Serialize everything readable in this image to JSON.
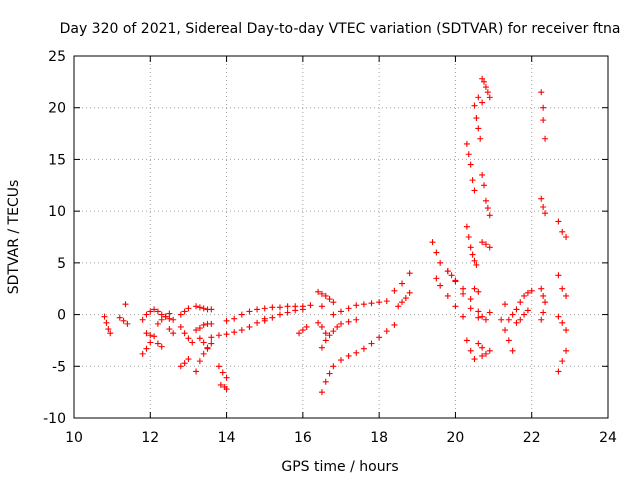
{
  "chart_data": {
    "type": "scatter",
    "title": "Day 320 of 2021, Sidereal Day-to-day VTEC variation (SDTVAR) for receiver ftna",
    "xlabel": "GPS time / hours",
    "ylabel": "SDTVAR / TECUs",
    "xlim": [
      10,
      24
    ],
    "ylim": [
      -10,
      25
    ],
    "xticks": [
      "10",
      "12",
      "14",
      "16",
      "18",
      "20",
      "22",
      "24"
    ],
    "yticks": [
      "-10",
      "-5",
      "0",
      "5",
      "10",
      "15",
      "20",
      "25"
    ],
    "grid": true,
    "marker": "+",
    "color": "#ff0000",
    "series": [
      {
        "name": "s1",
        "x": [
          10.8,
          10.85,
          10.9,
          10.95
        ],
        "y": [
          -0.2,
          -0.8,
          -1.4,
          -1.8
        ]
      },
      {
        "name": "s2",
        "x": [
          11.2,
          11.3,
          11.4
        ],
        "y": [
          -0.3,
          -0.6,
          -0.9
        ]
      },
      {
        "name": "s3",
        "x": [
          11.35
        ],
        "y": [
          1.0
        ]
      },
      {
        "name": "s4",
        "x": [
          11.8,
          11.9,
          12.0,
          12.1,
          12.2,
          12.3,
          12.4,
          12.5
        ],
        "y": [
          -0.5,
          0.0,
          0.3,
          0.5,
          0.3,
          0.0,
          -0.2,
          -0.4
        ]
      },
      {
        "name": "s5",
        "x": [
          11.8,
          11.9,
          12.0
        ],
        "y": [
          -3.8,
          -3.3,
          -2.7
        ]
      },
      {
        "name": "s6",
        "x": [
          11.9,
          12.0,
          12.1
        ],
        "y": [
          -1.8,
          -2.0,
          -2.1
        ]
      },
      {
        "name": "s7",
        "x": [
          12.2,
          12.3,
          12.4,
          12.5,
          12.6
        ],
        "y": [
          -0.9,
          -0.5,
          -0.2,
          0.1,
          -0.5
        ]
      },
      {
        "name": "s8",
        "x": [
          12.2,
          12.3
        ],
        "y": [
          -2.8,
          -3.1
        ]
      },
      {
        "name": "s9",
        "x": [
          12.5,
          12.6
        ],
        "y": [
          -1.4,
          -1.8
        ]
      },
      {
        "name": "s10",
        "x": [
          12.8,
          12.9,
          13.0
        ],
        "y": [
          0.0,
          0.3,
          0.6
        ]
      },
      {
        "name": "s11",
        "x": [
          12.8,
          12.9,
          13.0,
          13.1
        ],
        "y": [
          -1.2,
          -1.8,
          -2.3,
          -2.7
        ]
      },
      {
        "name": "s12",
        "x": [
          12.8,
          12.9,
          13.0
        ],
        "y": [
          -5.0,
          -4.7,
          -4.3
        ]
      },
      {
        "name": "s13",
        "x": [
          13.2,
          13.3,
          13.4,
          13.5,
          13.6
        ],
        "y": [
          0.8,
          0.7,
          0.6,
          0.5,
          0.5
        ]
      },
      {
        "name": "s14",
        "x": [
          13.2,
          13.3,
          13.4,
          13.5,
          13.6
        ],
        "y": [
          -1.5,
          -1.3,
          -1.0,
          -0.9,
          -0.9
        ]
      },
      {
        "name": "s15",
        "x": [
          13.2,
          13.3,
          13.4,
          13.5,
          13.6
        ],
        "y": [
          -5.5,
          -4.5,
          -3.8,
          -3.3,
          -2.8
        ]
      },
      {
        "name": "s16",
        "x": [
          13.3,
          13.4,
          13.5
        ],
        "y": [
          -2.3,
          -2.7,
          -3.2
        ]
      },
      {
        "name": "s17",
        "x": [
          13.8,
          13.9,
          14.0
        ],
        "y": [
          -5.0,
          -5.6,
          -6.1
        ]
      },
      {
        "name": "s18",
        "x": [
          13.85,
          13.95,
          14.0
        ],
        "y": [
          -6.8,
          -7.0,
          -7.2
        ]
      },
      {
        "name": "s19",
        "x": [
          13.6,
          13.8,
          14.0,
          14.2,
          14.4,
          14.6,
          14.8,
          15.0
        ],
        "y": [
          -2.2,
          -2.0,
          -1.9,
          -1.7,
          -1.5,
          -1.2,
          -0.8,
          -0.4
        ]
      },
      {
        "name": "s20",
        "x": [
          14.0,
          14.2,
          14.4,
          14.6,
          14.8,
          15.0,
          15.2,
          15.4,
          15.6,
          15.8,
          16.0,
          16.2
        ],
        "y": [
          -0.6,
          -0.4,
          0.0,
          0.3,
          0.5,
          0.6,
          0.7,
          0.7,
          0.8,
          0.8,
          0.8,
          0.9
        ]
      },
      {
        "name": "s21",
        "x": [
          15.0,
          15.2,
          15.4,
          15.6,
          15.8,
          16.0
        ],
        "y": [
          -0.6,
          -0.3,
          0.0,
          0.2,
          0.4,
          0.5
        ]
      },
      {
        "name": "s22",
        "x": [
          15.9,
          16.0,
          16.1
        ],
        "y": [
          -1.8,
          -1.5,
          -1.2
        ]
      },
      {
        "name": "s23",
        "x": [
          16.4,
          16.5,
          16.6,
          16.7,
          16.8
        ],
        "y": [
          2.2,
          2.0,
          1.8,
          1.5,
          1.2
        ]
      },
      {
        "name": "s24",
        "x": [
          16.5
        ],
        "y": [
          0.8
        ]
      },
      {
        "name": "s25",
        "x": [
          16.4,
          16.5,
          16.6
        ],
        "y": [
          -0.8,
          -1.2,
          -1.8
        ]
      },
      {
        "name": "s26",
        "x": [
          16.5,
          16.6,
          16.7,
          16.8,
          16.9,
          17.0,
          17.2,
          17.4
        ],
        "y": [
          -3.2,
          -2.5,
          -2.0,
          -1.6,
          -1.2,
          -0.9,
          -0.7,
          -0.5
        ]
      },
      {
        "name": "s27",
        "x": [
          16.8,
          17.0,
          17.2,
          17.4,
          17.6,
          17.8,
          18.0,
          18.2
        ],
        "y": [
          0.0,
          0.3,
          0.6,
          0.9,
          1.0,
          1.1,
          1.2,
          1.3
        ]
      },
      {
        "name": "s28",
        "x": [
          16.5,
          16.6,
          16.7,
          16.8,
          17.0,
          17.2,
          17.4,
          17.6,
          17.8,
          18.0,
          18.2,
          18.4
        ],
        "y": [
          -7.5,
          -6.5,
          -5.7,
          -5.0,
          -4.4,
          -4.0,
          -3.7,
          -3.3,
          -2.8,
          -2.2,
          -1.6,
          -1.0
        ]
      },
      {
        "name": "s29",
        "x": [
          18.4,
          18.6,
          18.8
        ],
        "y": [
          2.3,
          3.0,
          4.0
        ]
      },
      {
        "name": "s30",
        "x": [
          18.5,
          18.6,
          18.7,
          18.8
        ],
        "y": [
          0.8,
          1.2,
          1.6,
          2.1
        ]
      },
      {
        "name": "s31",
        "x": [
          19.4,
          19.5,
          19.6,
          19.8,
          20.0,
          20.2,
          20.4,
          20.6
        ],
        "y": [
          7.0,
          6.0,
          5.0,
          4.2,
          3.3,
          2.5,
          1.5,
          0.3
        ]
      },
      {
        "name": "s32",
        "x": [
          19.5,
          19.6,
          19.8,
          20.0,
          20.2
        ],
        "y": [
          3.5,
          2.8,
          1.8,
          0.8,
          -0.2
        ]
      },
      {
        "name": "s33",
        "x": [
          19.8,
          19.9,
          20.0,
          20.2,
          20.4,
          20.6
        ],
        "y": [
          4.2,
          3.8,
          3.2,
          2.0,
          0.6,
          -0.3
        ]
      },
      {
        "name": "s34",
        "x": [
          20.3,
          20.35,
          20.4,
          20.45,
          20.5
        ],
        "y": [
          16.5,
          15.5,
          14.5,
          13.0,
          12.0
        ]
      },
      {
        "name": "s35",
        "x": [
          20.3,
          20.35,
          20.4,
          20.45,
          20.5,
          20.55
        ],
        "y": [
          8.5,
          7.5,
          6.5,
          5.8,
          5.2,
          4.8
        ]
      },
      {
        "name": "s36",
        "x": [
          20.5,
          20.55,
          20.6,
          20.65
        ],
        "y": [
          20.2,
          19.0,
          18.0,
          17.0
        ]
      },
      {
        "name": "s37",
        "x": [
          20.7,
          20.75,
          20.8,
          20.85,
          20.9
        ],
        "y": [
          22.8,
          22.5,
          22.0,
          21.5,
          21.0
        ]
      },
      {
        "name": "s38",
        "x": [
          20.6,
          20.7
        ],
        "y": [
          21.0,
          20.5
        ]
      },
      {
        "name": "s39",
        "x": [
          20.7,
          20.75,
          20.8,
          20.85,
          20.9
        ],
        "y": [
          13.5,
          12.5,
          11.0,
          10.3,
          9.6
        ]
      },
      {
        "name": "s40",
        "x": [
          20.7,
          20.8,
          20.9
        ],
        "y": [
          7.0,
          6.8,
          6.5
        ]
      },
      {
        "name": "s41",
        "x": [
          20.5,
          20.6
        ],
        "y": [
          2.5,
          2.2
        ]
      },
      {
        "name": "s42",
        "x": [
          20.3,
          20.4,
          20.5
        ],
        "y": [
          -2.5,
          -3.5,
          -4.3
        ]
      },
      {
        "name": "s43",
        "x": [
          20.6,
          20.7
        ],
        "y": [
          -2.8,
          -3.2
        ]
      },
      {
        "name": "s44",
        "x": [
          20.7,
          20.8,
          20.9
        ],
        "y": [
          -4.0,
          -3.8,
          -3.5
        ]
      },
      {
        "name": "s45",
        "x": [
          20.7,
          20.8,
          20.9
        ],
        "y": [
          -0.2,
          -0.5,
          0.2
        ]
      },
      {
        "name": "s46",
        "x": [
          21.2,
          21.3,
          21.4,
          21.5
        ],
        "y": [
          -0.5,
          -1.5,
          -2.5,
          -3.5
        ]
      },
      {
        "name": "s47",
        "x": [
          21.3
        ],
        "y": [
          1.0
        ]
      },
      {
        "name": "s48",
        "x": [
          21.4,
          21.5,
          21.6,
          21.7,
          21.8,
          21.9,
          22.0
        ],
        "y": [
          -0.5,
          0.0,
          0.5,
          1.2,
          1.8,
          2.1,
          2.3
        ]
      },
      {
        "name": "s49",
        "x": [
          21.6,
          21.7,
          21.8,
          21.9
        ],
        "y": [
          -0.8,
          -0.5,
          0.0,
          0.4
        ]
      },
      {
        "name": "s50",
        "x": [
          22.25,
          22.3,
          22.3,
          22.35
        ],
        "y": [
          21.5,
          20.0,
          18.8,
          17.0
        ]
      },
      {
        "name": "s51",
        "x": [
          22.25,
          22.3,
          22.35
        ],
        "y": [
          11.2,
          10.4,
          9.8
        ]
      },
      {
        "name": "s52",
        "x": [
          22.25,
          22.3,
          22.35
        ],
        "y": [
          2.5,
          1.8,
          1.2
        ]
      },
      {
        "name": "s53",
        "x": [
          22.25,
          22.3
        ],
        "y": [
          -0.5,
          0.2
        ]
      },
      {
        "name": "s54",
        "x": [
          22.7,
          22.8,
          22.9
        ],
        "y": [
          9.0,
          8.0,
          7.5
        ]
      },
      {
        "name": "s55",
        "x": [
          22.7,
          22.8,
          22.9
        ],
        "y": [
          3.8,
          2.5,
          1.8
        ]
      },
      {
        "name": "s56",
        "x": [
          22.7,
          22.8,
          22.9
        ],
        "y": [
          -0.2,
          -0.8,
          -1.5
        ]
      },
      {
        "name": "s57",
        "x": [
          22.7,
          22.8,
          22.9
        ],
        "y": [
          -5.5,
          -4.5,
          -3.5
        ]
      }
    ]
  }
}
